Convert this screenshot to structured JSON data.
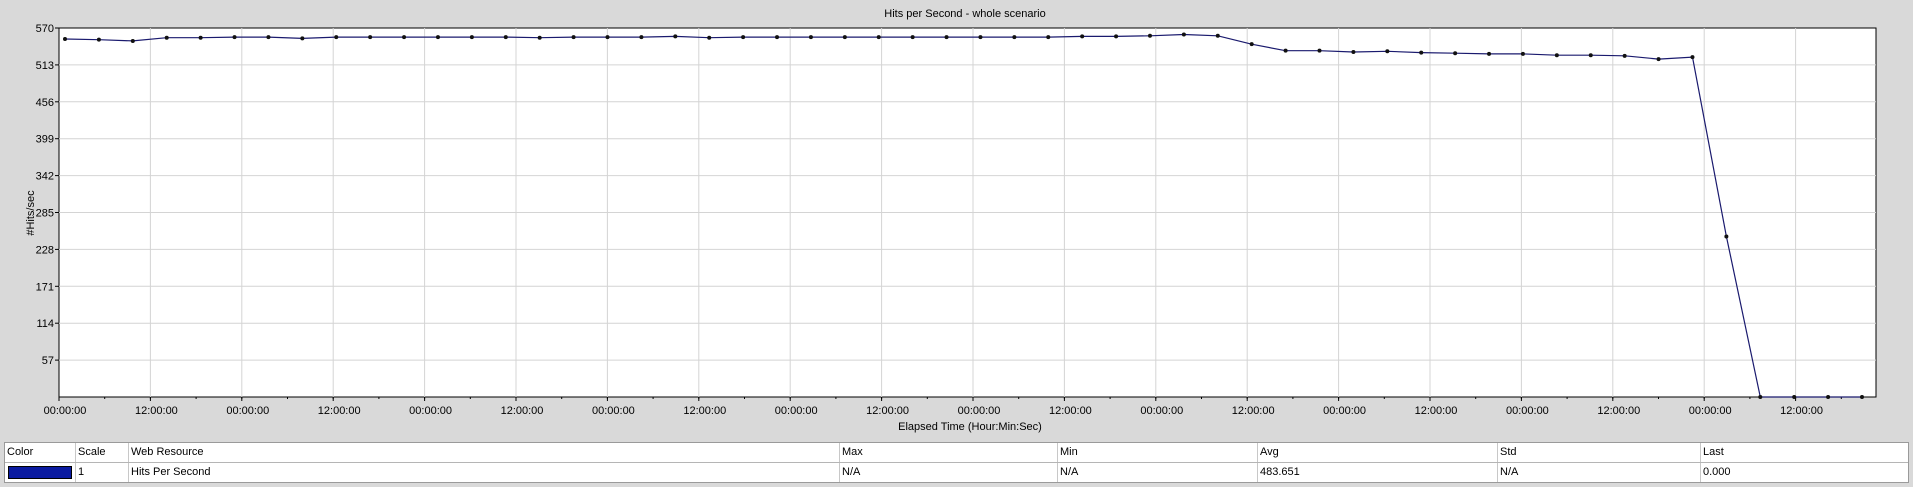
{
  "chart_data": {
    "type": "line",
    "title": "Hits per Second - whole scenario",
    "xlabel": "Elapsed Time (Hour:Min:Sec)",
    "ylabel": "#Hits/sec",
    "yticks": [
      57,
      114,
      171,
      228,
      285,
      342,
      399,
      456,
      513,
      570
    ],
    "ylim": [
      0,
      570
    ],
    "xticks": [
      "00:00:00",
      "12:00:00",
      "00:00:00",
      "12:00:00",
      "00:00:00",
      "12:00:00",
      "00:00:00",
      "12:00:00",
      "00:00:00",
      "12:00:00",
      "00:00:00",
      "12:00:00",
      "00:00:00",
      "12:00:00",
      "00:00:00",
      "12:00:00",
      "00:00:00",
      "12:00:00",
      "00:00:00",
      "12:00:00"
    ],
    "grid": true,
    "line_color": "#1a1a6e",
    "series": [
      {
        "name": "Hits Per Second",
        "values": [
          553,
          552,
          550,
          555,
          555,
          556,
          556,
          554,
          556,
          556,
          556,
          556,
          556,
          556,
          555,
          556,
          556,
          556,
          557,
          555,
          556,
          556,
          556,
          556,
          556,
          556,
          556,
          556,
          556,
          556,
          557,
          557,
          558,
          560,
          558,
          545,
          535,
          535,
          533,
          534,
          532,
          531,
          530,
          530,
          528,
          528,
          527,
          522,
          525,
          248,
          0,
          0,
          0,
          0
        ]
      }
    ]
  },
  "legend": {
    "headers": {
      "color": "Color",
      "scale": "Scale",
      "resource": "Web Resource",
      "max": "Max",
      "min": "Min",
      "avg": "Avg",
      "std": "Std",
      "last": "Last"
    },
    "row": {
      "color_hex": "#0a1aa0",
      "scale": "1",
      "resource": "Hits Per Second",
      "max": "N/A",
      "min": "N/A",
      "avg": "483.651",
      "std": "N/A",
      "last": "0.000"
    }
  }
}
